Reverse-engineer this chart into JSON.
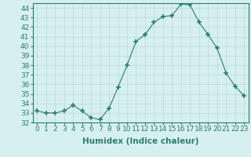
{
  "x": [
    0,
    1,
    2,
    3,
    4,
    5,
    6,
    7,
    8,
    9,
    10,
    11,
    12,
    13,
    14,
    15,
    16,
    17,
    18,
    19,
    20,
    21,
    22,
    23
  ],
  "y": [
    33.2,
    33.0,
    33.0,
    33.2,
    33.8,
    33.2,
    32.5,
    32.3,
    33.5,
    35.7,
    38.0,
    40.5,
    41.2,
    42.5,
    43.1,
    43.2,
    44.4,
    44.3,
    42.5,
    41.2,
    39.8,
    37.2,
    35.8,
    34.8
  ],
  "line_color": "#2d7d6e",
  "marker": "+",
  "marker_size": 4,
  "marker_lw": 1.2,
  "bg_color": "#d6f0ef",
  "grid_color": "#b8d8d6",
  "xlabel": "Humidex (Indice chaleur)",
  "ylabel": "",
  "xlim": [
    -0.5,
    23.5
  ],
  "ylim": [
    32,
    44.5
  ],
  "yticks": [
    32,
    33,
    34,
    35,
    36,
    37,
    38,
    39,
    40,
    41,
    42,
    43,
    44
  ],
  "xticks": [
    0,
    1,
    2,
    3,
    4,
    5,
    6,
    7,
    8,
    9,
    10,
    11,
    12,
    13,
    14,
    15,
    16,
    17,
    18,
    19,
    20,
    21,
    22,
    23
  ],
  "xtick_labels": [
    "0",
    "1",
    "2",
    "3",
    "4",
    "5",
    "6",
    "7",
    "8",
    "9",
    "10",
    "11",
    "12",
    "13",
    "14",
    "15",
    "16",
    "17",
    "18",
    "19",
    "20",
    "21",
    "22",
    "23"
  ],
  "ytick_labels": [
    "32",
    "33",
    "34",
    "35",
    "36",
    "37",
    "38",
    "39",
    "40",
    "41",
    "42",
    "43",
    "44"
  ],
  "tick_fontsize": 6.5,
  "xlabel_fontsize": 7.5
}
